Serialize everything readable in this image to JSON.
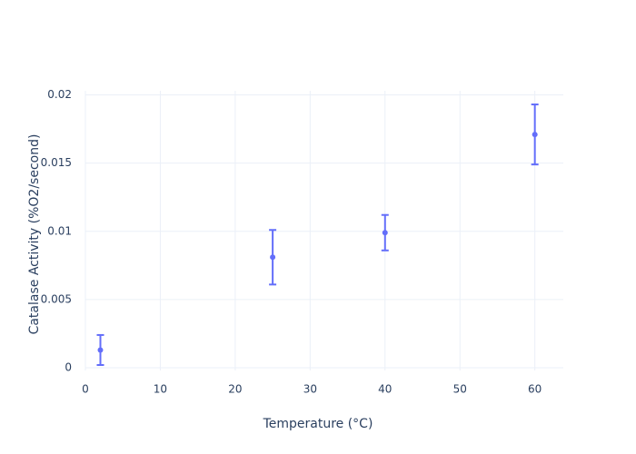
{
  "chart_data": {
    "type": "scatter",
    "x_label": "Temperature (°C)",
    "y_label": "Catalase Activity (%O2/second)",
    "series": [
      {
        "color": "#636efa",
        "x": [
          2,
          25,
          40,
          60
        ],
        "values": [
          0.0013,
          0.0081,
          0.0099,
          0.0171
        ],
        "error": [
          0.0011,
          0.002,
          0.0013,
          0.0022
        ]
      }
    ],
    "xlim": [
      0,
      63.8
    ],
    "xticks": [
      0,
      10,
      20,
      30,
      40,
      50,
      60
    ],
    "ylim": [
      -0.0002,
      0.0203
    ],
    "yticks": [
      0,
      0.005,
      0.01,
      0.015,
      0.02
    ],
    "grid": true
  }
}
